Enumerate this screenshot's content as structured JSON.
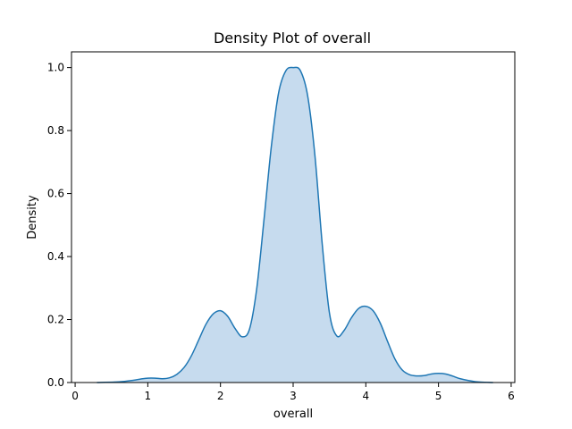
{
  "chart_data": {
    "type": "area",
    "title": "Density Plot of overall",
    "xlabel": "overall",
    "ylabel": "Density",
    "xlim": [
      -0.05,
      6.05
    ],
    "ylim": [
      0,
      1.05
    ],
    "xticks": [
      "0",
      "1",
      "2",
      "3",
      "4",
      "5",
      "6"
    ],
    "yticks": [
      "0.0",
      "0.2",
      "0.4",
      "0.6",
      "0.8",
      "1.0"
    ],
    "grid": false,
    "legend": "none",
    "fill_color": "#c6dbee",
    "line_color": "#1f77b4",
    "series": [
      {
        "x": [
          0.3,
          0.6,
          0.8,
          0.9,
          1.0,
          1.1,
          1.2,
          1.3,
          1.4,
          1.5,
          1.6,
          1.7,
          1.8,
          1.9,
          2.0,
          2.1,
          2.2,
          2.3,
          2.4,
          2.5,
          2.6,
          2.7,
          2.8,
          2.9,
          3.0,
          3.1,
          3.2,
          3.3,
          3.4,
          3.5,
          3.6,
          3.7,
          3.8,
          3.9,
          4.0,
          4.1,
          4.2,
          4.3,
          4.4,
          4.5,
          4.6,
          4.7,
          4.8,
          4.9,
          5.0,
          5.1,
          5.2,
          5.3,
          5.5,
          5.75
        ],
        "y": [
          0.0,
          0.002,
          0.007,
          0.011,
          0.014,
          0.014,
          0.012,
          0.015,
          0.026,
          0.048,
          0.085,
          0.135,
          0.185,
          0.218,
          0.228,
          0.21,
          0.172,
          0.145,
          0.17,
          0.3,
          0.52,
          0.75,
          0.92,
          0.99,
          1.0,
          0.99,
          0.91,
          0.72,
          0.44,
          0.22,
          0.148,
          0.165,
          0.205,
          0.235,
          0.242,
          0.228,
          0.188,
          0.13,
          0.075,
          0.04,
          0.025,
          0.021,
          0.022,
          0.027,
          0.029,
          0.027,
          0.02,
          0.012,
          0.003,
          0.0
        ]
      }
    ]
  }
}
